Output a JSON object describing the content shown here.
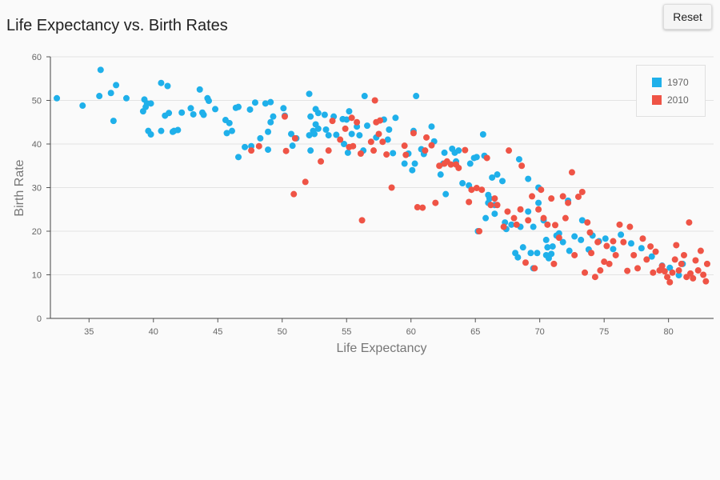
{
  "toolbar": {
    "reset_label": "Reset"
  },
  "chart_data": {
    "type": "scatter",
    "title": "Life Expectancy vs. Birth Rates",
    "xlabel": "Life Expectancy",
    "ylabel": "Birth Rate",
    "xlim": [
      32,
      83.5
    ],
    "ylim": [
      0,
      60
    ],
    "xticks": [
      35,
      40,
      45,
      50,
      55,
      60,
      65,
      70,
      75,
      80
    ],
    "yticks": [
      0,
      10,
      20,
      30,
      40,
      50,
      60
    ],
    "grid": true,
    "legend_position": "top-right",
    "series": [
      {
        "name": "1970",
        "color": "#1fb0ea",
        "points": [
          [
            32.5,
            50.5
          ],
          [
            34.5,
            48.8
          ],
          [
            35.8,
            51
          ],
          [
            35.9,
            57
          ],
          [
            36.7,
            51.7
          ],
          [
            36.9,
            45.3
          ],
          [
            37.1,
            53.5
          ],
          [
            37.9,
            50.5
          ],
          [
            39.2,
            47.5
          ],
          [
            39.3,
            50.2
          ],
          [
            39.4,
            48.5
          ],
          [
            39.5,
            49.3
          ],
          [
            39.6,
            43
          ],
          [
            39.8,
            42.2
          ],
          [
            39.8,
            49.3
          ],
          [
            40.6,
            54
          ],
          [
            40.6,
            43
          ],
          [
            40.9,
            46.5
          ],
          [
            41.1,
            53.3
          ],
          [
            41.2,
            47.1
          ],
          [
            41.5,
            42.8
          ],
          [
            41.6,
            43
          ],
          [
            41.9,
            43.2
          ],
          [
            42.2,
            47.2
          ],
          [
            42.9,
            48.2
          ],
          [
            43.1,
            46.8
          ],
          [
            43.6,
            52.5
          ],
          [
            43.8,
            47.2
          ],
          [
            43.9,
            46.7
          ],
          [
            44.2,
            50.5
          ],
          [
            44.3,
            49.9
          ],
          [
            44.8,
            48
          ],
          [
            45.6,
            45.5
          ],
          [
            45.7,
            42.5
          ],
          [
            45.9,
            44.8
          ],
          [
            46.1,
            43
          ],
          [
            46.4,
            48.3
          ],
          [
            46.6,
            37
          ],
          [
            46.6,
            48.5
          ],
          [
            47.1,
            39.3
          ],
          [
            47.5,
            47.9
          ],
          [
            47.6,
            39.5
          ],
          [
            47.9,
            49.5
          ],
          [
            48.3,
            41.3
          ],
          [
            48.7,
            49.3
          ],
          [
            48.9,
            42.8
          ],
          [
            48.9,
            38.7
          ],
          [
            49.1,
            45
          ],
          [
            49.1,
            49.6
          ],
          [
            49.3,
            46.3
          ],
          [
            50.1,
            48.2
          ],
          [
            50.2,
            46.5
          ],
          [
            50.7,
            42.3
          ],
          [
            50.8,
            39.6
          ],
          [
            51.1,
            41.3
          ],
          [
            52.1,
            51.5
          ],
          [
            52.1,
            42
          ],
          [
            52.2,
            38.5
          ],
          [
            52.2,
            46.3
          ],
          [
            52.4,
            43
          ],
          [
            52.5,
            42.3
          ],
          [
            52.6,
            44.5
          ],
          [
            52.6,
            48
          ],
          [
            52.8,
            43.5
          ],
          [
            52.8,
            47.1
          ],
          [
            53.3,
            46.7
          ],
          [
            53.4,
            43.3
          ],
          [
            53.6,
            42
          ],
          [
            54,
            46.3
          ],
          [
            54.2,
            42.1
          ],
          [
            54.7,
            45.7
          ],
          [
            54.8,
            40
          ],
          [
            55,
            45.6
          ],
          [
            55.1,
            38
          ],
          [
            55.2,
            47.5
          ],
          [
            55.4,
            42.3
          ],
          [
            55.8,
            44
          ],
          [
            56,
            42
          ],
          [
            56.3,
            38.5
          ],
          [
            56.4,
            51
          ],
          [
            56.6,
            44.2
          ],
          [
            57.3,
            41.5
          ],
          [
            57.9,
            45.6
          ],
          [
            58.2,
            41
          ],
          [
            58.3,
            43.3
          ],
          [
            58.6,
            37.9
          ],
          [
            58.8,
            46
          ],
          [
            59.5,
            35.5
          ],
          [
            59.8,
            37.8
          ],
          [
            60.1,
            34
          ],
          [
            60.2,
            43
          ],
          [
            60.3,
            35.5
          ],
          [
            60.4,
            51
          ],
          [
            60.8,
            38.8
          ],
          [
            61,
            37.7
          ],
          [
            61.6,
            44
          ],
          [
            61.8,
            40.6
          ],
          [
            62.3,
            33
          ],
          [
            62.5,
            35.5
          ],
          [
            62.6,
            38
          ],
          [
            62.7,
            28.5
          ],
          [
            63.2,
            38.9
          ],
          [
            63.4,
            38
          ],
          [
            63.5,
            36
          ],
          [
            63.7,
            38.5
          ],
          [
            64,
            31
          ],
          [
            64.5,
            30.5
          ],
          [
            64.6,
            35.5
          ],
          [
            64.9,
            36.8
          ],
          [
            65.1,
            37
          ],
          [
            65.2,
            20
          ],
          [
            65.6,
            42.2
          ],
          [
            65.7,
            37.3
          ],
          [
            65.8,
            23
          ],
          [
            66,
            26.5
          ],
          [
            66,
            28.3
          ],
          [
            66.1,
            27.5
          ],
          [
            66.3,
            32.3
          ],
          [
            66.5,
            24
          ],
          [
            66.5,
            26
          ],
          [
            66.7,
            33
          ],
          [
            67.1,
            31.5
          ],
          [
            67.3,
            22
          ],
          [
            67.4,
            20.5
          ],
          [
            67.8,
            21.5
          ],
          [
            68.1,
            15
          ],
          [
            68.3,
            14
          ],
          [
            68.4,
            36.5
          ],
          [
            68.5,
            21
          ],
          [
            68.7,
            16.3
          ],
          [
            69.1,
            32
          ],
          [
            69.1,
            24.5
          ],
          [
            69.3,
            15
          ],
          [
            69.5,
            21
          ],
          [
            69.5,
            11.5
          ],
          [
            69.8,
            15
          ],
          [
            69.9,
            30
          ],
          [
            69.9,
            26.5
          ],
          [
            70.3,
            22.5
          ],
          [
            70.5,
            14.5
          ],
          [
            70.5,
            18
          ],
          [
            70.6,
            16.3
          ],
          [
            70.7,
            13.8
          ],
          [
            70.9,
            14.8
          ],
          [
            71,
            16.5
          ],
          [
            71.3,
            19
          ],
          [
            71.5,
            19.5
          ],
          [
            71.8,
            17.5
          ],
          [
            72.2,
            27
          ],
          [
            72.3,
            15.5
          ],
          [
            72.7,
            18.8
          ],
          [
            73.2,
            18
          ],
          [
            73.3,
            22.5
          ],
          [
            73.8,
            15.8
          ],
          [
            74.1,
            19
          ],
          [
            74.6,
            17.7
          ],
          [
            75.1,
            18.3
          ],
          [
            75.7,
            15.9
          ],
          [
            76.3,
            19.2
          ],
          [
            77.1,
            17.2
          ],
          [
            77.9,
            16.1
          ],
          [
            78.7,
            14.2
          ],
          [
            79.5,
            12.1
          ],
          [
            80.1,
            11.6
          ],
          [
            80.8,
            9.9
          ],
          [
            81.1,
            12.5
          ]
        ]
      },
      {
        "name": "2010",
        "color": "#ef5446",
        "points": [
          [
            47.6,
            38.5
          ],
          [
            48.2,
            39.5
          ],
          [
            50.2,
            46.3
          ],
          [
            50.3,
            38.4
          ],
          [
            50.9,
            28.5
          ],
          [
            51,
            41.3
          ],
          [
            51.8,
            31.3
          ],
          [
            53,
            36
          ],
          [
            53.6,
            38.5
          ],
          [
            53.9,
            45.3
          ],
          [
            54.5,
            41
          ],
          [
            54.9,
            43.5
          ],
          [
            55.2,
            39.3
          ],
          [
            55.4,
            46
          ],
          [
            55.5,
            39.5
          ],
          [
            55.8,
            45
          ],
          [
            56.1,
            37.8
          ],
          [
            56.2,
            22.5
          ],
          [
            56.9,
            40.5
          ],
          [
            57.1,
            38.5
          ],
          [
            57.2,
            50
          ],
          [
            57.3,
            45
          ],
          [
            57.5,
            42.3
          ],
          [
            57.6,
            45.4
          ],
          [
            57.8,
            40.5
          ],
          [
            58.1,
            37.6
          ],
          [
            58.5,
            30
          ],
          [
            59.5,
            39.6
          ],
          [
            59.6,
            37.5
          ],
          [
            60.2,
            42.5
          ],
          [
            60.5,
            25.5
          ],
          [
            60.9,
            25.4
          ],
          [
            61.1,
            38.5
          ],
          [
            61.2,
            41.5
          ],
          [
            61.6,
            39.7
          ],
          [
            61.9,
            26.5
          ],
          [
            62.2,
            35
          ],
          [
            62.6,
            35.5
          ],
          [
            62.8,
            36
          ],
          [
            63.1,
            35.3
          ],
          [
            63.5,
            35.3
          ],
          [
            63.7,
            34.5
          ],
          [
            64.2,
            38.6
          ],
          [
            64.5,
            26.7
          ],
          [
            64.7,
            29.5
          ],
          [
            65.1,
            29.9
          ],
          [
            65.3,
            20
          ],
          [
            65.5,
            29.5
          ],
          [
            65.9,
            36.8
          ],
          [
            66.2,
            26
          ],
          [
            66.5,
            27.5
          ],
          [
            66.7,
            26
          ],
          [
            67.2,
            21
          ],
          [
            67.5,
            24.5
          ],
          [
            67.6,
            38.5
          ],
          [
            68,
            23
          ],
          [
            68.2,
            21.5
          ],
          [
            68.5,
            25
          ],
          [
            68.6,
            35
          ],
          [
            68.9,
            12.8
          ],
          [
            69.1,
            22.5
          ],
          [
            69.4,
            28
          ],
          [
            69.6,
            11.5
          ],
          [
            69.9,
            25
          ],
          [
            70.1,
            29.5
          ],
          [
            70.3,
            23
          ],
          [
            70.6,
            21.5
          ],
          [
            70.9,
            27.5
          ],
          [
            71.1,
            12.5
          ],
          [
            71.2,
            21.4
          ],
          [
            71.5,
            18.5
          ],
          [
            71.8,
            28
          ],
          [
            72,
            23
          ],
          [
            72.2,
            26.5
          ],
          [
            72.5,
            33.5
          ],
          [
            72.7,
            14.5
          ],
          [
            73,
            27.9
          ],
          [
            73.3,
            29
          ],
          [
            73.5,
            10.5
          ],
          [
            73.7,
            22
          ],
          [
            73.9,
            19.7
          ],
          [
            74,
            15
          ],
          [
            74.3,
            9.5
          ],
          [
            74.5,
            17.5
          ],
          [
            74.7,
            11
          ],
          [
            75,
            13
          ],
          [
            75.2,
            16.6
          ],
          [
            75.4,
            12.5
          ],
          [
            75.7,
            17.7
          ],
          [
            75.9,
            14.5
          ],
          [
            76.2,
            21.5
          ],
          [
            76.5,
            17.5
          ],
          [
            76.8,
            10.9
          ],
          [
            77,
            21
          ],
          [
            77.3,
            14.5
          ],
          [
            77.6,
            11.5
          ],
          [
            78,
            18.3
          ],
          [
            78.3,
            13.5
          ],
          [
            78.6,
            16.5
          ],
          [
            78.8,
            10.5
          ],
          [
            79,
            15.3
          ],
          [
            79.3,
            11
          ],
          [
            79.5,
            12
          ],
          [
            79.7,
            10.8
          ],
          [
            79.9,
            9.5
          ],
          [
            80.1,
            8.3
          ],
          [
            80.3,
            10.5
          ],
          [
            80.5,
            13.5
          ],
          [
            80.6,
            16.8
          ],
          [
            80.8,
            11
          ],
          [
            81,
            12.5
          ],
          [
            81.2,
            14.5
          ],
          [
            81.4,
            9.5
          ],
          [
            81.6,
            22
          ],
          [
            81.7,
            10.3
          ],
          [
            81.9,
            9.2
          ],
          [
            82.1,
            13.3
          ],
          [
            82.3,
            11
          ],
          [
            82.5,
            15.5
          ],
          [
            82.7,
            10
          ],
          [
            82.9,
            8.5
          ],
          [
            83,
            12.5
          ]
        ]
      }
    ]
  }
}
